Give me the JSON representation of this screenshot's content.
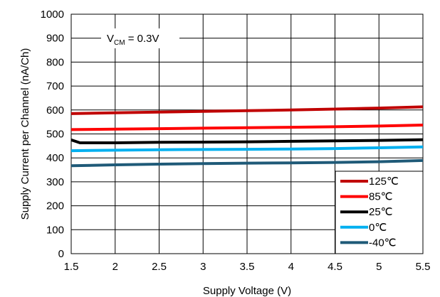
{
  "chart_data": {
    "type": "line",
    "xlabel": "Supply Voltage (V)",
    "ylabel": "Supply Current per Channel (nA/Ch)",
    "xlim": [
      1.5,
      5.5
    ],
    "ylim": [
      0,
      1000
    ],
    "x_ticks": [
      "1.5",
      "2",
      "2.5",
      "3",
      "3.5",
      "4",
      "4.5",
      "5",
      "5.5"
    ],
    "y_ticks": [
      "0",
      "100",
      "200",
      "300",
      "400",
      "500",
      "600",
      "700",
      "800",
      "900",
      "1000"
    ],
    "grid": true,
    "legend_position": "bottom-right",
    "annotation": {
      "main": "V",
      "sub": "CM",
      "rest": " = 0.3V"
    },
    "series": [
      {
        "name": "125℃",
        "color": "#c00000",
        "x": [
          1.5,
          2,
          2.5,
          3,
          3.5,
          4,
          4.5,
          5,
          5.5
        ],
        "y": [
          585,
          588,
          591,
          594,
          597,
          600,
          604,
          608,
          613
        ]
      },
      {
        "name": "85℃",
        "color": "#ff0000",
        "x": [
          1.5,
          2,
          2.5,
          3,
          3.5,
          4,
          4.5,
          5,
          5.5
        ],
        "y": [
          518,
          520,
          522,
          524,
          526,
          528,
          530,
          533,
          537
        ]
      },
      {
        "name": "25℃",
        "color": "#000000",
        "x": [
          1.5,
          1.6,
          2,
          2.5,
          3,
          3.5,
          4,
          4.5,
          5,
          5.5
        ],
        "y": [
          475,
          463,
          463,
          465,
          466,
          467,
          469,
          471,
          473,
          476
        ]
      },
      {
        "name": "0℃",
        "color": "#00b0f0",
        "x": [
          1.5,
          2,
          2.5,
          3,
          3.5,
          4,
          4.5,
          5,
          5.5
        ],
        "y": [
          430,
          432,
          434,
          435,
          436,
          437,
          439,
          442,
          446
        ]
      },
      {
        "name": "-40℃",
        "color": "#1f5a78",
        "x": [
          1.5,
          2,
          2.5,
          3,
          3.5,
          4,
          4.5,
          5,
          5.5
        ],
        "y": [
          367,
          371,
          374,
          376,
          378,
          379,
          381,
          384,
          389
        ]
      }
    ]
  }
}
